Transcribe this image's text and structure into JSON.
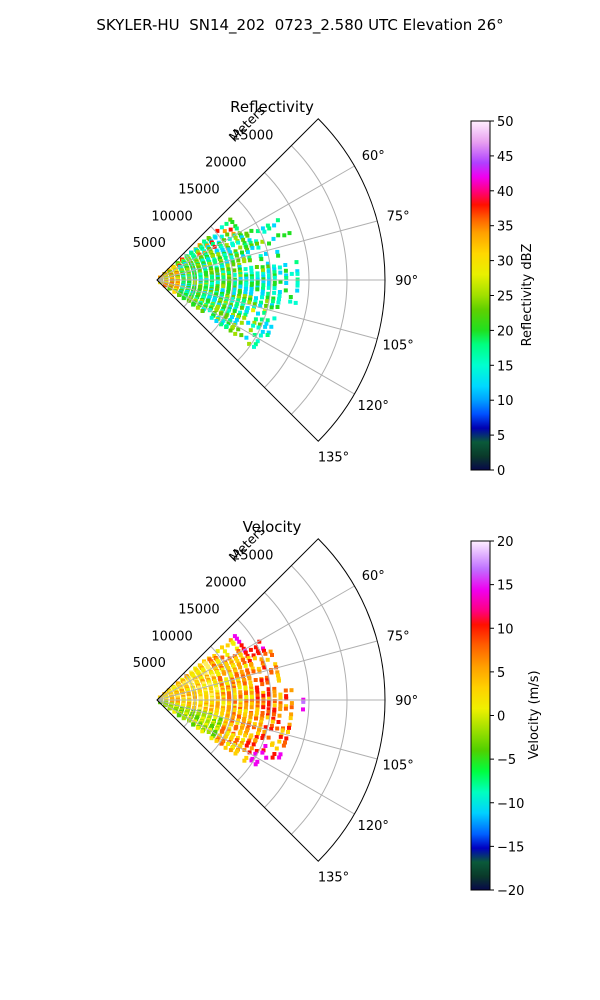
{
  "figure": {
    "title": "SKYLER-HU  SN14_202  0723_2.580 UTC Elevation 26°"
  },
  "chart_data": [
    {
      "type": "polar sector",
      "title": "Reflectivity",
      "range_label": "Meters",
      "range_ticks": [
        5000,
        10000,
        15000,
        20000,
        25000
      ],
      "range_tick_labels": [
        "5000",
        "10000",
        "15000",
        "20000",
        "25000"
      ],
      "range_max": 30000,
      "azimuth_range": [
        45,
        135
      ],
      "azimuth_ticks": [
        60,
        75,
        90,
        105,
        120,
        135
      ],
      "azimuth_tick_labels": [
        "60°",
        "75°",
        "90°",
        "105°",
        "120°",
        "135°"
      ],
      "grid": true,
      "colorbar": {
        "label": "Reflectivity dBZ",
        "range": [
          0,
          50
        ],
        "ticks": [
          0,
          5,
          10,
          15,
          20,
          25,
          30,
          35,
          40,
          45,
          50
        ],
        "tick_labels": [
          "0",
          "5",
          "10",
          "15",
          "20",
          "25",
          "30",
          "35",
          "40",
          "45",
          "50"
        ]
      }
    },
    {
      "type": "polar sector",
      "title": "Velocity",
      "range_label": "Meters",
      "range_ticks": [
        5000,
        10000,
        15000,
        20000,
        25000
      ],
      "range_tick_labels": [
        "5000",
        "10000",
        "15000",
        "20000",
        "25000"
      ],
      "range_max": 30000,
      "azimuth_range": [
        45,
        135
      ],
      "azimuth_ticks": [
        60,
        75,
        90,
        105,
        120,
        135
      ],
      "azimuth_tick_labels": [
        "60°",
        "75°",
        "90°",
        "105°",
        "120°",
        "135°"
      ],
      "grid": true,
      "colorbar": {
        "label": "Velocity (m/s)",
        "range": [
          -20,
          20
        ],
        "ticks": [
          -20,
          -15,
          -10,
          -5,
          0,
          5,
          10,
          15,
          20
        ],
        "tick_labels": [
          "−20",
          "−15",
          "−10",
          "−5",
          "0",
          "5",
          "10",
          "15",
          "20"
        ]
      }
    }
  ]
}
